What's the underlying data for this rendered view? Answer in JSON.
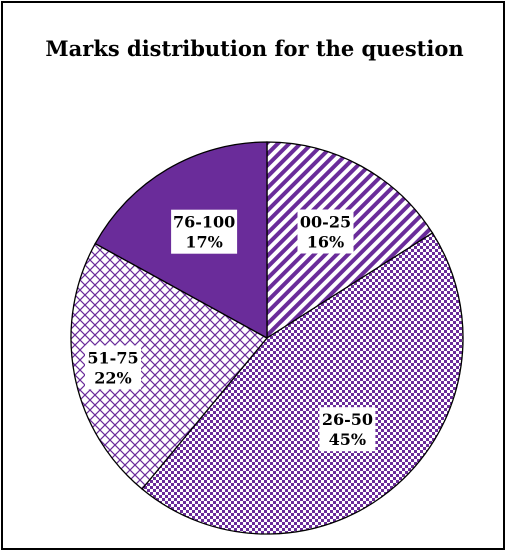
{
  "chart_data": {
    "type": "pie",
    "title": "Marks distribution for the question",
    "slices": [
      {
        "label": "00-25",
        "value": 16,
        "value_text": "16%",
        "pattern": "diagonal-stripes"
      },
      {
        "label": "26-50",
        "value": 45,
        "value_text": "45%",
        "pattern": "small-checker"
      },
      {
        "label": "51-75",
        "value": 22,
        "value_text": "22%",
        "pattern": "crosshatch"
      },
      {
        "label": "76-100",
        "value": 17,
        "value_text": "17%",
        "pattern": "solid"
      }
    ],
    "colors": {
      "accent": "#6a2c9a",
      "light": "#ffffff",
      "border": "#000000"
    },
    "start_angle_deg": 0,
    "direction": "clockwise",
    "legend": "none"
  }
}
